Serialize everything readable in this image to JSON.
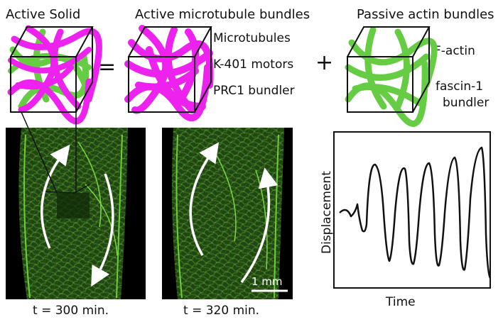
{
  "panels": {
    "active_solid": {
      "title": "Active Solid"
    },
    "equals": "=",
    "microtubule": {
      "title": "Active microtubule bundles",
      "labels": [
        "Microtubules",
        "K-401 motors",
        "PRC1 bundler"
      ]
    },
    "plus": "+",
    "actin": {
      "title": "Passive actin bundles",
      "labels": [
        "F-actin",
        "fascin-1",
        "bundler"
      ]
    }
  },
  "micrographs": {
    "left_time": "t = 300 min.",
    "right_time": "t = 320 min.",
    "scale_bar": "1 mm"
  },
  "plot": {
    "ylabel": "Displacement",
    "xlabel": "Time"
  },
  "colors": {
    "microtubule": "#ee22ee",
    "actin": "#66cc44",
    "micrograph_bg": "#000000",
    "micrograph_green": "#4a8f2a"
  }
}
